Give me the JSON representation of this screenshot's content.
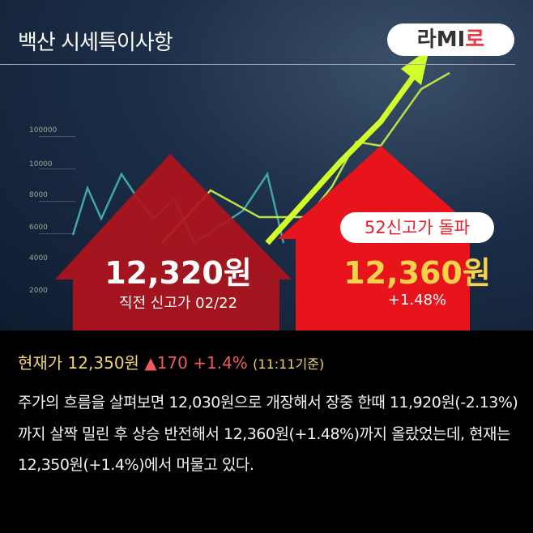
{
  "header": {
    "title": "백산 시세특이사항",
    "logo": {
      "main": "라MI",
      "accent": "로"
    }
  },
  "background_ticks": [
    "100000",
    "10000",
    "8000",
    "6000",
    "4000",
    "2000"
  ],
  "previous_high": {
    "price": "12,320원",
    "label": "직전 신고가 02/22"
  },
  "new_high": {
    "badge": "52신고가 돌파",
    "price": "12,360원",
    "change": "+1.48%"
  },
  "current": {
    "label": "현재가 12,350원",
    "change": "▲170 +1.4%",
    "time": "(11:11기준)"
  },
  "description": "주가의 흐름을 살펴보면 12,030원으로 개장해서 장중 한때 11,920원(-2.13%)까지 살짝 밀린 후 상승 반전해서 12,360원(+1.48%)까지 올랐었는데, 현재는 12,350원(+1.4%)에서 머물고 있다.",
  "colors": {
    "left_arrow": "#b0141c",
    "right_arrow": "#e8141c",
    "price_yellow": "#f7d24a",
    "up_red": "#ef5a5a"
  }
}
